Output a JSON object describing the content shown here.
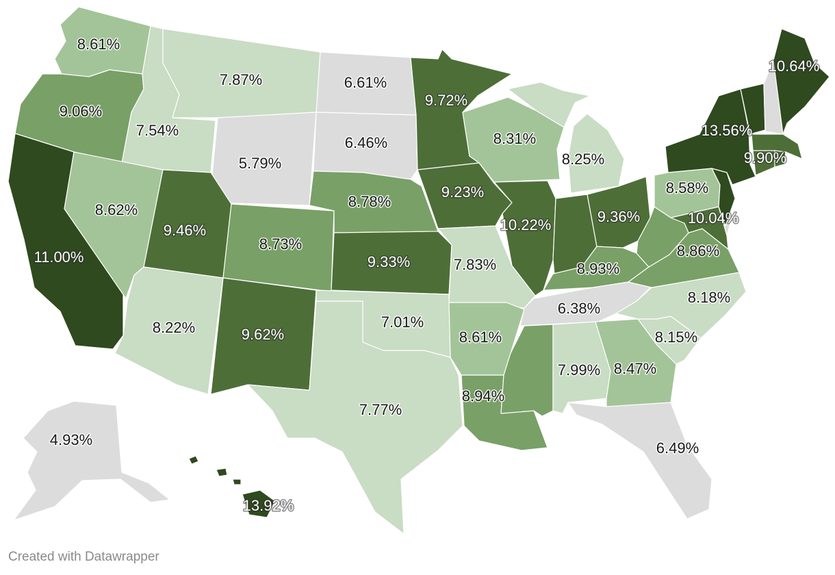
{
  "credit": "Created with Datawrapper",
  "color_scale": [
    "#dcdcdc",
    "#c9dcc4",
    "#a3c498",
    "#79a067",
    "#4e6e38",
    "#2f4a1e"
  ],
  "chart_data": {
    "type": "choropleth",
    "unit": "%",
    "values": [
      {
        "state": "WA",
        "label": "8.61%",
        "value": 8.61
      },
      {
        "state": "OR",
        "label": "9.06%",
        "value": 9.06
      },
      {
        "state": "CA",
        "label": "11.00%",
        "value": 11.0
      },
      {
        "state": "ID",
        "label": "7.54%",
        "value": 7.54
      },
      {
        "state": "NV",
        "label": "8.62%",
        "value": 8.62
      },
      {
        "state": "MT",
        "label": "7.87%",
        "value": 7.87
      },
      {
        "state": "WY",
        "label": "5.79%",
        "value": 5.79
      },
      {
        "state": "UT",
        "label": "9.46%",
        "value": 9.46
      },
      {
        "state": "AZ",
        "label": "8.22%",
        "value": 8.22
      },
      {
        "state": "CO",
        "label": "8.73%",
        "value": 8.73
      },
      {
        "state": "NM",
        "label": "9.62%",
        "value": 9.62
      },
      {
        "state": "ND",
        "label": "6.61%",
        "value": 6.61
      },
      {
        "state": "SD",
        "label": "6.46%",
        "value": 6.46
      },
      {
        "state": "NE",
        "label": "8.78%",
        "value": 8.78
      },
      {
        "state": "KS",
        "label": "9.33%",
        "value": 9.33
      },
      {
        "state": "OK",
        "label": "7.01%",
        "value": 7.01
      },
      {
        "state": "TX",
        "label": "7.77%",
        "value": 7.77
      },
      {
        "state": "MN",
        "label": "9.72%",
        "value": 9.72
      },
      {
        "state": "IA",
        "label": "9.23%",
        "value": 9.23
      },
      {
        "state": "MO",
        "label": "7.83%",
        "value": 7.83
      },
      {
        "state": "AR",
        "label": "8.61%",
        "value": 8.61
      },
      {
        "state": "LA",
        "label": "8.94%",
        "value": 8.94
      },
      {
        "state": "WI",
        "label": "8.31%",
        "value": 8.31
      },
      {
        "state": "IL",
        "label": "10.22%",
        "value": 10.22
      },
      {
        "state": "MI",
        "label": "8.25%",
        "value": 8.25
      },
      {
        "state": "IN",
        "label": "",
        "value": null
      },
      {
        "state": "OH",
        "label": "9.36%",
        "value": 9.36
      },
      {
        "state": "KY",
        "label": "8.93%",
        "value": 8.93
      },
      {
        "state": "TN",
        "label": "6.38%",
        "value": 6.38
      },
      {
        "state": "MS",
        "label": "",
        "value": null
      },
      {
        "state": "AL",
        "label": "7.99%",
        "value": 7.99
      },
      {
        "state": "GA",
        "label": "8.47%",
        "value": 8.47
      },
      {
        "state": "FL",
        "label": "6.49%",
        "value": 6.49
      },
      {
        "state": "SC",
        "label": "8.15%",
        "value": 8.15
      },
      {
        "state": "NC",
        "label": "8.18%",
        "value": 8.18
      },
      {
        "state": "VA",
        "label": "8.86%",
        "value": 8.86
      },
      {
        "state": "WV",
        "label": "",
        "value": null
      },
      {
        "state": "MD",
        "label": "10.04%",
        "value": 10.04
      },
      {
        "state": "DE",
        "label": "",
        "value": null
      },
      {
        "state": "PA",
        "label": "8.58%",
        "value": 8.58
      },
      {
        "state": "NJ",
        "label": "",
        "value": null
      },
      {
        "state": "NY",
        "label": "13.56%",
        "value": 13.56
      },
      {
        "state": "VT",
        "label": "",
        "value": null
      },
      {
        "state": "NH",
        "label": "",
        "value": null
      },
      {
        "state": "MA",
        "label": "9.90%",
        "value": 9.9
      },
      {
        "state": "CT",
        "label": "",
        "value": null
      },
      {
        "state": "RI",
        "label": "",
        "value": null
      },
      {
        "state": "ME",
        "label": "10.64%",
        "value": 10.64
      },
      {
        "state": "AK",
        "label": "4.93%",
        "value": 4.93
      },
      {
        "state": "HI",
        "label": "13.92%",
        "value": 13.92
      }
    ]
  }
}
